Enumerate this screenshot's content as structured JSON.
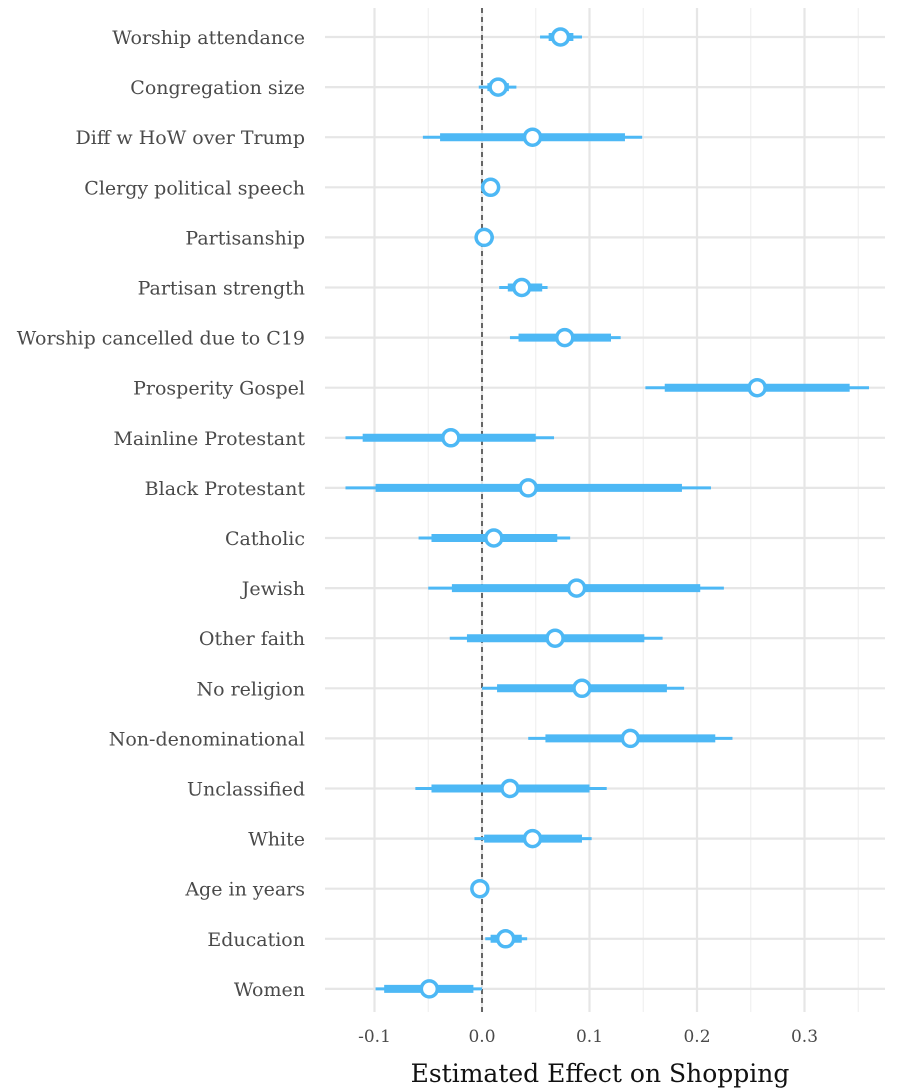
{
  "chart_data": {
    "type": "coefficient-plot",
    "title": "",
    "xlabel": "Estimated Effect on Shopping",
    "ylabel": "",
    "xlim": [
      -0.145,
      0.38
    ],
    "x_ticks": [
      -0.1,
      0.0,
      0.1,
      0.2,
      0.3
    ],
    "x_tick_labels": [
      "-0.1",
      "0.0",
      "0.1",
      "0.2",
      "0.3"
    ],
    "reference_line": 0,
    "grid": true,
    "color": "#4db8f5",
    "rows": [
      {
        "label": "Worship attendance",
        "estimate": 0.073,
        "inner": [
          0.062,
          0.085
        ],
        "outer": [
          0.054,
          0.093
        ]
      },
      {
        "label": "Congregation size",
        "estimate": 0.015,
        "inner": [
          0.005,
          0.025
        ],
        "outer": [
          -0.003,
          0.032
        ]
      },
      {
        "label": "Diff w HoW over Trump",
        "estimate": 0.047,
        "inner": [
          -0.039,
          0.133
        ],
        "outer": [
          -0.055,
          0.149
        ]
      },
      {
        "label": "Clergy political speech",
        "estimate": 0.008,
        "inner": [
          0.003,
          0.013
        ],
        "outer": [
          0.0,
          0.016
        ]
      },
      {
        "label": "Partisanship",
        "estimate": 0.002,
        "inner": [
          -0.003,
          0.007
        ],
        "outer": [
          -0.007,
          0.011
        ]
      },
      {
        "label": "Partisan strength",
        "estimate": 0.037,
        "inner": [
          0.024,
          0.056
        ],
        "outer": [
          0.016,
          0.061
        ]
      },
      {
        "label": "Worship cancelled due to C19",
        "estimate": 0.077,
        "inner": [
          0.034,
          0.12
        ],
        "outer": [
          0.026,
          0.129
        ]
      },
      {
        "label": "Prosperity Gospel",
        "estimate": 0.256,
        "inner": [
          0.17,
          0.342
        ],
        "outer": [
          0.152,
          0.36
        ]
      },
      {
        "label": "Mainline Protestant",
        "estimate": -0.029,
        "inner": [
          -0.111,
          0.05
        ],
        "outer": [
          -0.127,
          0.067
        ]
      },
      {
        "label": "Black Protestant",
        "estimate": 0.043,
        "inner": [
          -0.099,
          0.186
        ],
        "outer": [
          -0.127,
          0.213
        ]
      },
      {
        "label": "Catholic",
        "estimate": 0.011,
        "inner": [
          -0.047,
          0.07
        ],
        "outer": [
          -0.059,
          0.082
        ]
      },
      {
        "label": "Jewish",
        "estimate": 0.088,
        "inner": [
          -0.028,
          0.203
        ],
        "outer": [
          -0.05,
          0.225
        ]
      },
      {
        "label": "Other faith",
        "estimate": 0.068,
        "inner": [
          -0.014,
          0.151
        ],
        "outer": [
          -0.03,
          0.168
        ]
      },
      {
        "label": "No religion",
        "estimate": 0.093,
        "inner": [
          0.014,
          0.172
        ],
        "outer": [
          0.0,
          0.188
        ]
      },
      {
        "label": "Non-denominational",
        "estimate": 0.138,
        "inner": [
          0.059,
          0.217
        ],
        "outer": [
          0.043,
          0.233
        ]
      },
      {
        "label": "Unclassified",
        "estimate": 0.026,
        "inner": [
          -0.047,
          0.1
        ],
        "outer": [
          -0.062,
          0.116
        ]
      },
      {
        "label": "White",
        "estimate": 0.047,
        "inner": [
          0.002,
          0.093
        ],
        "outer": [
          -0.007,
          0.102
        ]
      },
      {
        "label": "Age in years",
        "estimate": -0.002,
        "inner": [
          -0.003,
          -0.001
        ],
        "outer": [
          -0.004,
          0.0
        ]
      },
      {
        "label": "Education",
        "estimate": 0.022,
        "inner": [
          0.008,
          0.037
        ],
        "outer": [
          0.003,
          0.042
        ]
      },
      {
        "label": "Women",
        "estimate": -0.049,
        "inner": [
          -0.091,
          -0.008
        ],
        "outer": [
          -0.099,
          0.0
        ]
      }
    ]
  }
}
